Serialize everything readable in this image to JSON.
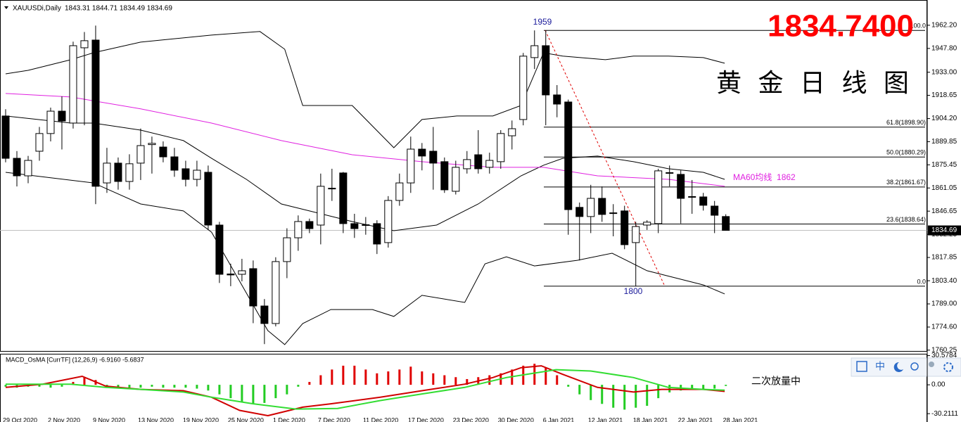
{
  "header": {
    "symbol": "XAUUSDi,Daily",
    "ohlc": "1843.31 1844.71 1834.49 1834.69"
  },
  "title": "1834.7400",
  "subtitle": "黄 金 日 线 图",
  "toolbar": {
    "ime": "中"
  },
  "chart_data": [
    {
      "type": "candlestick",
      "open": [
        1905.8,
        1879.5,
        1868.6,
        1883.9,
        1894.9,
        1908.8,
        1901.4,
        1948.2,
        1953.0,
        1864.2,
        1876.5,
        1865.1,
        1876.5,
        1888.0,
        1886.5,
        1880.4,
        1873.0,
        1866.4,
        1870.8,
        1838.0,
        1807.6,
        1807.4,
        1810.9,
        1787.7,
        1776.8,
        1815.3,
        1830.1,
        1840.2,
        1838.0,
        1860.5,
        1870.4,
        1838.9,
        1838.2,
        1838.9,
        1827.1,
        1853.3,
        1864.2,
        1885.2,
        1883.9,
        1877.4,
        1859.0,
        1873.0,
        1881.7,
        1873.9,
        1877.4,
        1893.5,
        1903.6,
        1942.1,
        1949.5,
        1918.9,
        1914.5,
        1849.0,
        1843.3,
        1854.6,
        1845.6,
        1846.8,
        1827.1,
        1838.0,
        1838.9,
        1870.2,
        1869.5,
        1855.7,
        1855.5,
        1849.8,
        1843.31
      ],
      "high": [
        1910,
        1884,
        1881,
        1899,
        1911,
        1918,
        1952,
        1958,
        1962,
        1886,
        1880,
        1882,
        1898,
        1893,
        1890,
        1886,
        1878,
        1878,
        1875,
        1840,
        1814,
        1817,
        1816,
        1792,
        1818,
        1836,
        1844,
        1842,
        1870,
        1873,
        1871,
        1845,
        1843,
        1841,
        1856,
        1870,
        1893,
        1889,
        1899,
        1880,
        1878,
        1884,
        1897,
        1883,
        1897,
        1903,
        1945,
        1959,
        1959,
        1925,
        1916,
        1852,
        1863,
        1862,
        1851,
        1850,
        1840,
        1841,
        1873,
        1875,
        1872,
        1866,
        1858,
        1853,
        1844.71
      ],
      "low": [
        1877,
        1862,
        1864,
        1878,
        1890,
        1885,
        1898,
        1900,
        1851,
        1858,
        1860,
        1860,
        1866,
        1870,
        1877,
        1868,
        1862,
        1862,
        1835,
        1802,
        1800,
        1803,
        1777,
        1764,
        1775,
        1805,
        1822,
        1833,
        1826,
        1853,
        1833,
        1830,
        1832,
        1820,
        1824,
        1850,
        1858,
        1872,
        1860,
        1858,
        1857,
        1870,
        1870,
        1870,
        1873,
        1885,
        1900,
        1935,
        1900,
        1905,
        1832,
        1816,
        1833,
        1840,
        1831,
        1823,
        1800,
        1835,
        1833,
        1862,
        1839,
        1845,
        1847,
        1833,
        1834.49
      ],
      "close": [
        1879.5,
        1868.6,
        1878.2,
        1894.9,
        1908.8,
        1902.7,
        1949.5,
        1952.6,
        1862.1,
        1876.5,
        1865.1,
        1876.1,
        1887.4,
        1888.8,
        1880.4,
        1872.1,
        1866.4,
        1872.1,
        1838.0,
        1807.4,
        1807.0,
        1809.6,
        1787.7,
        1776.8,
        1815.3,
        1830.1,
        1840.2,
        1835.8,
        1862.1,
        1860.9,
        1838.9,
        1835.8,
        1837.8,
        1826.2,
        1853.3,
        1864.2,
        1885.2,
        1880.9,
        1876.5,
        1859.9,
        1873.9,
        1878.7,
        1873.0,
        1878.2,
        1894.9,
        1897.9,
        1943.0,
        1949.5,
        1918.9,
        1913.2,
        1847.6,
        1843.3,
        1854.6,
        1844.6,
        1845.2,
        1825.8,
        1837.1,
        1839.8,
        1871.7,
        1870.6,
        1854.6,
        1855.3,
        1850.3,
        1844.1,
        1834.69
      ],
      "x_labels": [
        "29 Oct 2020",
        "2 Nov 2020",
        "9 Nov 2020",
        "13 Nov 2020",
        "19 Nov 2020",
        "25 Nov 2020",
        "1 Dec 2020",
        "7 Dec 2020",
        "11 Dec 2020",
        "17 Dec 2020",
        "23 Dec 2020",
        "30 Dec 2020",
        "6 Jan 2021",
        "12 Jan 2021",
        "18 Jan 2021",
        "22 Jan 2021",
        "28 Jan 2021"
      ],
      "xlim": [
        -0.5,
        81.9
      ],
      "ylim": [
        1759.3,
        1977.9
      ],
      "yticks": [
        {
          "value": 1962.2,
          "label": "1962.20"
        },
        {
          "value": 1947.8,
          "label": "1947.80"
        },
        {
          "value": 1933.0,
          "label": "1933.00"
        },
        {
          "value": 1918.65,
          "label": "1918.65"
        },
        {
          "value": 1904.2,
          "label": "1904.20"
        },
        {
          "value": 1889.85,
          "label": "1889.85"
        },
        {
          "value": 1875.45,
          "label": "1875.45"
        },
        {
          "value": 1861.05,
          "label": "1861.05"
        },
        {
          "value": 1846.65,
          "label": "1846.65"
        },
        {
          "value": 1832.25,
          "label": "1832.25"
        },
        {
          "value": 1817.85,
          "label": "1817.85"
        },
        {
          "value": 1803.4,
          "label": "1803.40"
        },
        {
          "value": 1789.0,
          "label": "1789.00"
        },
        {
          "value": 1774.6,
          "label": "1774.60"
        },
        {
          "value": 1760.25,
          "label": "1760.25"
        }
      ],
      "current_price": {
        "value": 1834.69,
        "label": "1834.69"
      },
      "overlays": [
        {
          "color": "#000000",
          "x": [
            0,
            2,
            5.8,
            7.8,
            12,
            18.3,
            22.6,
            24.8,
            26.4,
            28.3,
            30.8,
            34.5,
            37,
            40.1,
            43.3,
            45.8,
            47.8,
            49.5,
            53.3,
            55.8,
            58.9,
            62,
            63.9
          ],
          "values": [
            1932.0,
            1934.2,
            1940.8,
            1945.1,
            1951.7,
            1956.1,
            1958.3,
            1947.3,
            1912.3,
            1912.3,
            1912.3,
            1886.1,
            1903.6,
            1905.8,
            1905.8,
            1912.3,
            1945.1,
            1943.0,
            1940.8,
            1943.0,
            1943.0,
            1942.1,
            1938.6
          ]
        },
        {
          "color": "#000000",
          "x": [
            0,
            5.8,
            7.8,
            12,
            15.8,
            18.3,
            21.4,
            24.5,
            27,
            30.8,
            34.5,
            38.3,
            42,
            45.8,
            47.8,
            49.5,
            52.6,
            55.8,
            58.9,
            62,
            63.9
          ],
          "values": [
            1905.8,
            1901.4,
            1901.4,
            1897.0,
            1890.5,
            1879.5,
            1866.4,
            1851.1,
            1846.8,
            1840.2,
            1834.5,
            1838.0,
            1851.1,
            1868.6,
            1875.2,
            1879.5,
            1880.9,
            1877.4,
            1873.0,
            1870.8,
            1866.4
          ]
        },
        {
          "color": "#000000",
          "x": [
            0,
            7.8,
            12,
            15.8,
            18.3,
            20.8,
            23.3,
            24.8,
            26.4,
            28.9,
            32.6,
            34.5,
            37,
            40.8,
            42.6,
            44.5,
            47,
            50.8,
            53.9,
            57,
            59.5,
            62,
            63.9
          ],
          "values": [
            1870.8,
            1864.2,
            1851.1,
            1846.8,
            1833.6,
            1803.0,
            1772.4,
            1763.7,
            1776.8,
            1785.5,
            1785.5,
            1781.2,
            1794.3,
            1789.9,
            1813.9,
            1818.3,
            1812.6,
            1816.1,
            1820.5,
            1809.6,
            1805.2,
            1800.8,
            1795.2
          ]
        },
        {
          "color": "#e020e0",
          "x": [
            0,
            5.8,
            12,
            18.3,
            24.5,
            30.8,
            37,
            43.3,
            47.8,
            52.6,
            58.9,
            63.9
          ],
          "values": [
            1919.8,
            1917.6,
            1910.2,
            1901.4,
            1890.5,
            1881.7,
            1877.4,
            1873.9,
            1873.9,
            1868.6,
            1866.4,
            1862.1
          ]
        }
      ],
      "ma_label": "MA60均线  1862",
      "fib_levels": [
        {
          "value": 1959,
          "label": "100.0"
        },
        {
          "value": 1898.9,
          "label": "61.8(1898.90)"
        },
        {
          "value": 1880.29,
          "label": "50.0(1880.29)"
        },
        {
          "value": 1861.67,
          "label": "38.2(1861.67)"
        },
        {
          "value": 1838.64,
          "label": "23.6(1838.64)"
        },
        {
          "value": 1800,
          "label": "0.0"
        }
      ],
      "annotations": [
        "1959",
        "1800"
      ]
    },
    {
      "type": "macd",
      "title": "MACD_OsMA [CurrTF] (12,26,9) -6.9160 -5.6837",
      "annotation": "二次放量中",
      "ylim": [
        -36,
        31
      ],
      "yticks": [
        {
          "value": 30.5784,
          "label": "30.5784"
        },
        {
          "value": 0,
          "label": "0.00"
        },
        {
          "value": -30.2111,
          "label": "-30.2111"
        }
      ],
      "histogram": [
        -2,
        -3,
        -2,
        -2,
        -3,
        -2,
        3,
        8,
        5,
        -3,
        -3,
        -3,
        -3,
        -2,
        -3,
        -3,
        -3,
        -4,
        -6,
        -10,
        -14,
        -18,
        -20,
        -19,
        -14,
        -10,
        -2,
        3,
        10,
        16,
        20,
        20,
        16,
        12,
        14,
        16,
        19,
        14,
        12,
        10,
        8,
        6,
        8,
        10,
        12,
        16,
        20,
        22,
        18,
        10,
        -2,
        -10,
        -16,
        -20,
        -24,
        -26,
        -24,
        -22,
        -14,
        -8,
        -6,
        -5,
        -5,
        -4,
        -1.2
      ],
      "positive_color": "#e00000",
      "negative_color": "#22cc22",
      "lines": [
        {
          "color": "#d00000",
          "x": [
            0,
            3.3,
            6.8,
            8.9,
            12,
            15.8,
            18.3,
            20.8,
            23.3,
            26.4,
            28.9,
            33.3,
            37,
            40.8,
            43.3,
            45.8,
            47.6,
            49.5,
            52.6,
            55.8,
            58.3,
            62,
            63.9
          ],
          "values": [
            -2.7,
            0.7,
            8.9,
            -1.4,
            -4.8,
            -6.2,
            -13.0,
            -26.8,
            -32.3,
            -23.4,
            -19.9,
            -13.0,
            -6.2,
            0.7,
            7.6,
            17.9,
            19.9,
            11.0,
            -2.7,
            -7.6,
            -4.8,
            -4.8,
            -6.9
          ]
        },
        {
          "color": "#33dd33",
          "x": [
            0,
            5.8,
            8.9,
            12,
            15.8,
            18.3,
            22,
            25.8,
            29.5,
            33.3,
            37,
            40.8,
            44.5,
            48.9,
            52,
            55.8,
            58.9,
            62,
            63.9
          ],
          "values": [
            0.7,
            0.7,
            -2.7,
            -4.8,
            -7.6,
            -13.0,
            -19.9,
            -25.4,
            -24.7,
            -16.5,
            -9.6,
            -2.7,
            7.6,
            15.8,
            14.4,
            7.6,
            -2.7,
            -4.8,
            -5.7
          ]
        }
      ]
    }
  ]
}
